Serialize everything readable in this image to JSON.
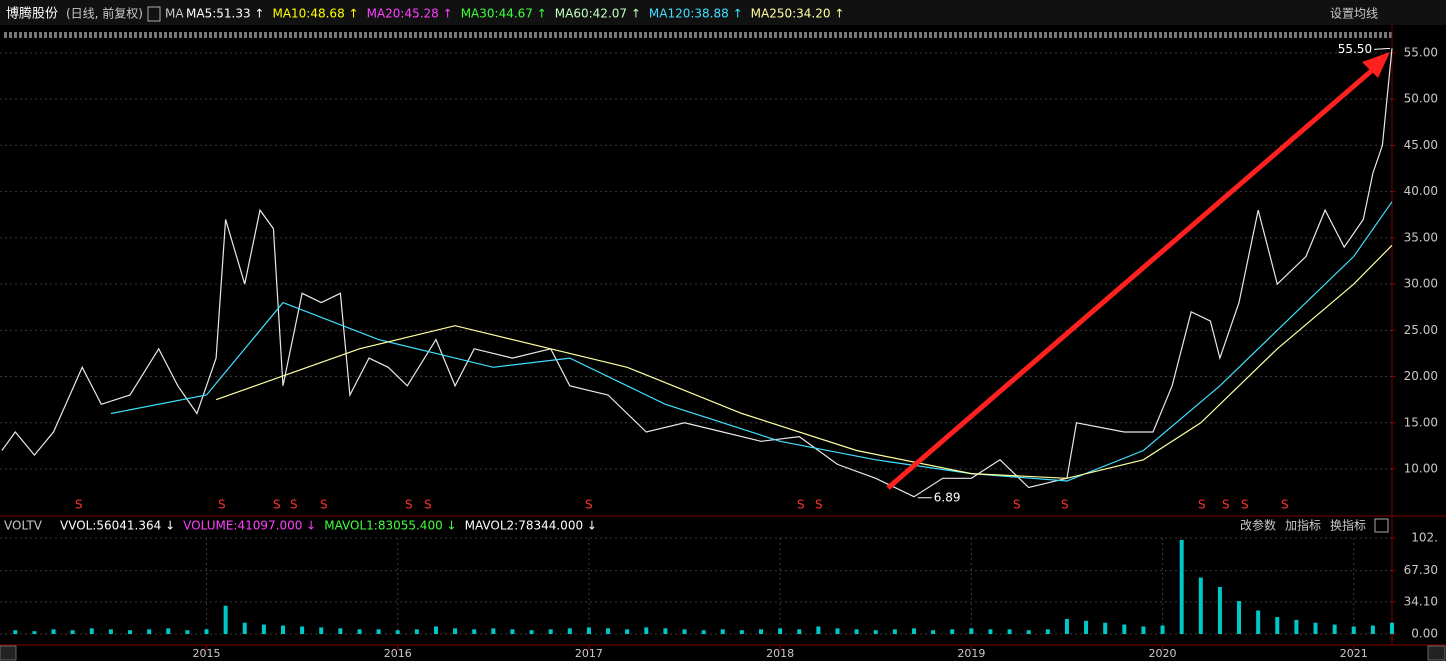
{
  "header": {
    "stock": "博腾股份",
    "mode": "(日线, 前复权)",
    "ma_label": "MA",
    "setting": "设置均线",
    "ma_items": [
      {
        "text": "MA5:51.33 ↑",
        "color": "#ffffff"
      },
      {
        "text": "MA10:48.68 ↑",
        "color": "#ffff00"
      },
      {
        "text": "MA20:45.28 ↑",
        "color": "#ff40ff"
      },
      {
        "text": "MA30:44.67 ↑",
        "color": "#40ff40"
      },
      {
        "text": "MA60:42.07 ↑",
        "color": "#c0ffc0"
      },
      {
        "text": "MA120:38.88 ↑",
        "color": "#40e0ff"
      },
      {
        "text": "MA250:34.20 ↑",
        "color": "#ffffa0"
      }
    ]
  },
  "volume_header": {
    "name": "VOLTV",
    "buttons": [
      "改参数",
      "加指标",
      "换指标"
    ],
    "items": [
      {
        "text": "VVOL:56041.364 ↓",
        "color": "#ffffff"
      },
      {
        "text": "VOLUME:41097.000 ↓",
        "color": "#ff40ff"
      },
      {
        "text": "MAVOL1:83055.400 ↓",
        "color": "#40ff40"
      },
      {
        "text": "MAVOL2:78344.000 ↓",
        "color": "#ffffff"
      }
    ]
  },
  "chart_data": [
    {
      "type": "line",
      "xlim": [
        2013.92,
        2021.2
      ],
      "xticks": [
        2015,
        2016,
        2017,
        2018,
        2019,
        2020,
        2021
      ],
      "ylim": [
        5.35,
        55.86
      ],
      "yticks": [
        {
          "value": 10,
          "label": "10.00"
        },
        {
          "value": 15,
          "label": "15.00"
        },
        {
          "value": 20,
          "label": "20.00"
        },
        {
          "value": 25,
          "label": "25.00"
        },
        {
          "value": 30,
          "label": "30.00"
        },
        {
          "value": 35,
          "label": "35.00"
        },
        {
          "value": 40,
          "label": "40.00"
        },
        {
          "value": 45,
          "label": "45.00"
        },
        {
          "value": 50,
          "label": "50.00"
        },
        {
          "value": 55,
          "label": "55.00"
        }
      ],
      "grid": true,
      "high": {
        "value": 55.5,
        "label": "55.50",
        "x": 2021.19
      },
      "low": {
        "value": 6.89,
        "label": "6.89",
        "x": 2018.72
      },
      "series": [
        {
          "color": "#e8e8e8",
          "x": [
            2013.93,
            2014.0,
            2014.1,
            2014.2,
            2014.35,
            2014.45,
            2014.6,
            2014.75,
            2014.85,
            2014.95,
            2015.05,
            2015.1,
            2015.2,
            2015.28,
            2015.35,
            2015.4,
            2015.5,
            2015.6,
            2015.7,
            2015.75,
            2015.85,
            2015.95,
            2016.05,
            2016.2,
            2016.3,
            2016.4,
            2016.6,
            2016.8,
            2016.9,
            2017.1,
            2017.3,
            2017.5,
            2017.7,
            2017.9,
            2018.1,
            2018.3,
            2018.5,
            2018.7,
            2018.85,
            2019.0,
            2019.15,
            2019.3,
            2019.5,
            2019.55,
            2019.8,
            2019.95,
            2020.05,
            2020.15,
            2020.25,
            2020.3,
            2020.4,
            2020.5,
            2020.6,
            2020.75,
            2020.85,
            2020.95,
            2021.05,
            2021.1,
            2021.15,
            2021.2
          ],
          "values": [
            12,
            14,
            11.5,
            14,
            21,
            17,
            18,
            23,
            19,
            16,
            22,
            37,
            30,
            38,
            36,
            19,
            29,
            28,
            29,
            18,
            22,
            21,
            19,
            24,
            19,
            23,
            22,
            23,
            19,
            18,
            14,
            15,
            14,
            13,
            13.5,
            10.5,
            9,
            7,
            9,
            9,
            11,
            8,
            9,
            15,
            14,
            14,
            19,
            27,
            26,
            22,
            28,
            38,
            30,
            33,
            38,
            34,
            37,
            42,
            45,
            55.5
          ]
        },
        {
          "color": "#40e0ff",
          "x": [
            2014.5,
            2015.0,
            2015.4,
            2015.9,
            2016.5,
            2016.9,
            2017.4,
            2018.0,
            2018.5,
            2019.0,
            2019.5,
            2019.9,
            2020.3,
            2020.7,
            2021.0,
            2021.2
          ],
          "values": [
            16,
            18,
            28,
            24,
            21,
            22,
            17,
            13,
            11,
            9.5,
            8.7,
            12,
            19,
            27,
            33,
            38.9
          ]
        },
        {
          "color": "#ffffa0",
          "x": [
            2015.05,
            2015.8,
            2016.3,
            2016.8,
            2017.2,
            2017.8,
            2018.4,
            2019.0,
            2019.5,
            2019.9,
            2020.2,
            2020.6,
            2021.0,
            2021.2
          ],
          "values": [
            17.5,
            23,
            25.5,
            23,
            21,
            16,
            12,
            9.5,
            9,
            11,
            15,
            23,
            30,
            34.2
          ]
        }
      ]
    },
    {
      "type": "bar",
      "color": "#00c8c8",
      "xlim": [
        2013.92,
        2021.2
      ],
      "ylim": [
        0,
        102
      ],
      "yticks": [
        {
          "value": 0,
          "label": "0.00"
        },
        {
          "value": 34.1,
          "label": "34.10"
        },
        {
          "value": 67.3,
          "label": "67.30"
        },
        {
          "value": 102,
          "label": "102."
        }
      ],
      "x": [
        2014.0,
        2014.1,
        2014.2,
        2014.3,
        2014.4,
        2014.5,
        2014.6,
        2014.7,
        2014.8,
        2014.9,
        2015.0,
        2015.1,
        2015.2,
        2015.3,
        2015.4,
        2015.5,
        2015.6,
        2015.7,
        2015.8,
        2015.9,
        2016.0,
        2016.1,
        2016.2,
        2016.3,
        2016.4,
        2016.5,
        2016.6,
        2016.7,
        2016.8,
        2016.9,
        2017.0,
        2017.1,
        2017.2,
        2017.3,
        2017.4,
        2017.5,
        2017.6,
        2017.7,
        2017.8,
        2017.9,
        2018.0,
        2018.1,
        2018.2,
        2018.3,
        2018.4,
        2018.5,
        2018.6,
        2018.7,
        2018.8,
        2018.9,
        2019.0,
        2019.1,
        2019.2,
        2019.3,
        2019.4,
        2019.5,
        2019.6,
        2019.7,
        2019.8,
        2019.9,
        2020.0,
        2020.1,
        2020.2,
        2020.3,
        2020.4,
        2020.5,
        2020.6,
        2020.7,
        2020.8,
        2020.9,
        2021.0,
        2021.1,
        2021.2
      ],
      "values": [
        4,
        3,
        5,
        4,
        6,
        5,
        4,
        5,
        6,
        4,
        5,
        30,
        12,
        10,
        9,
        8,
        7,
        6,
        5,
        5,
        4,
        5,
        8,
        6,
        5,
        6,
        5,
        4,
        5,
        6,
        7,
        6,
        5,
        7,
        6,
        5,
        4,
        5,
        4,
        5,
        6,
        5,
        8,
        6,
        5,
        4,
        5,
        6,
        4,
        5,
        6,
        5,
        5,
        4,
        5,
        16,
        14,
        12,
        10,
        8,
        9,
        100,
        60,
        50,
        35,
        25,
        18,
        15,
        12,
        10,
        8,
        9,
        12
      ]
    }
  ]
}
